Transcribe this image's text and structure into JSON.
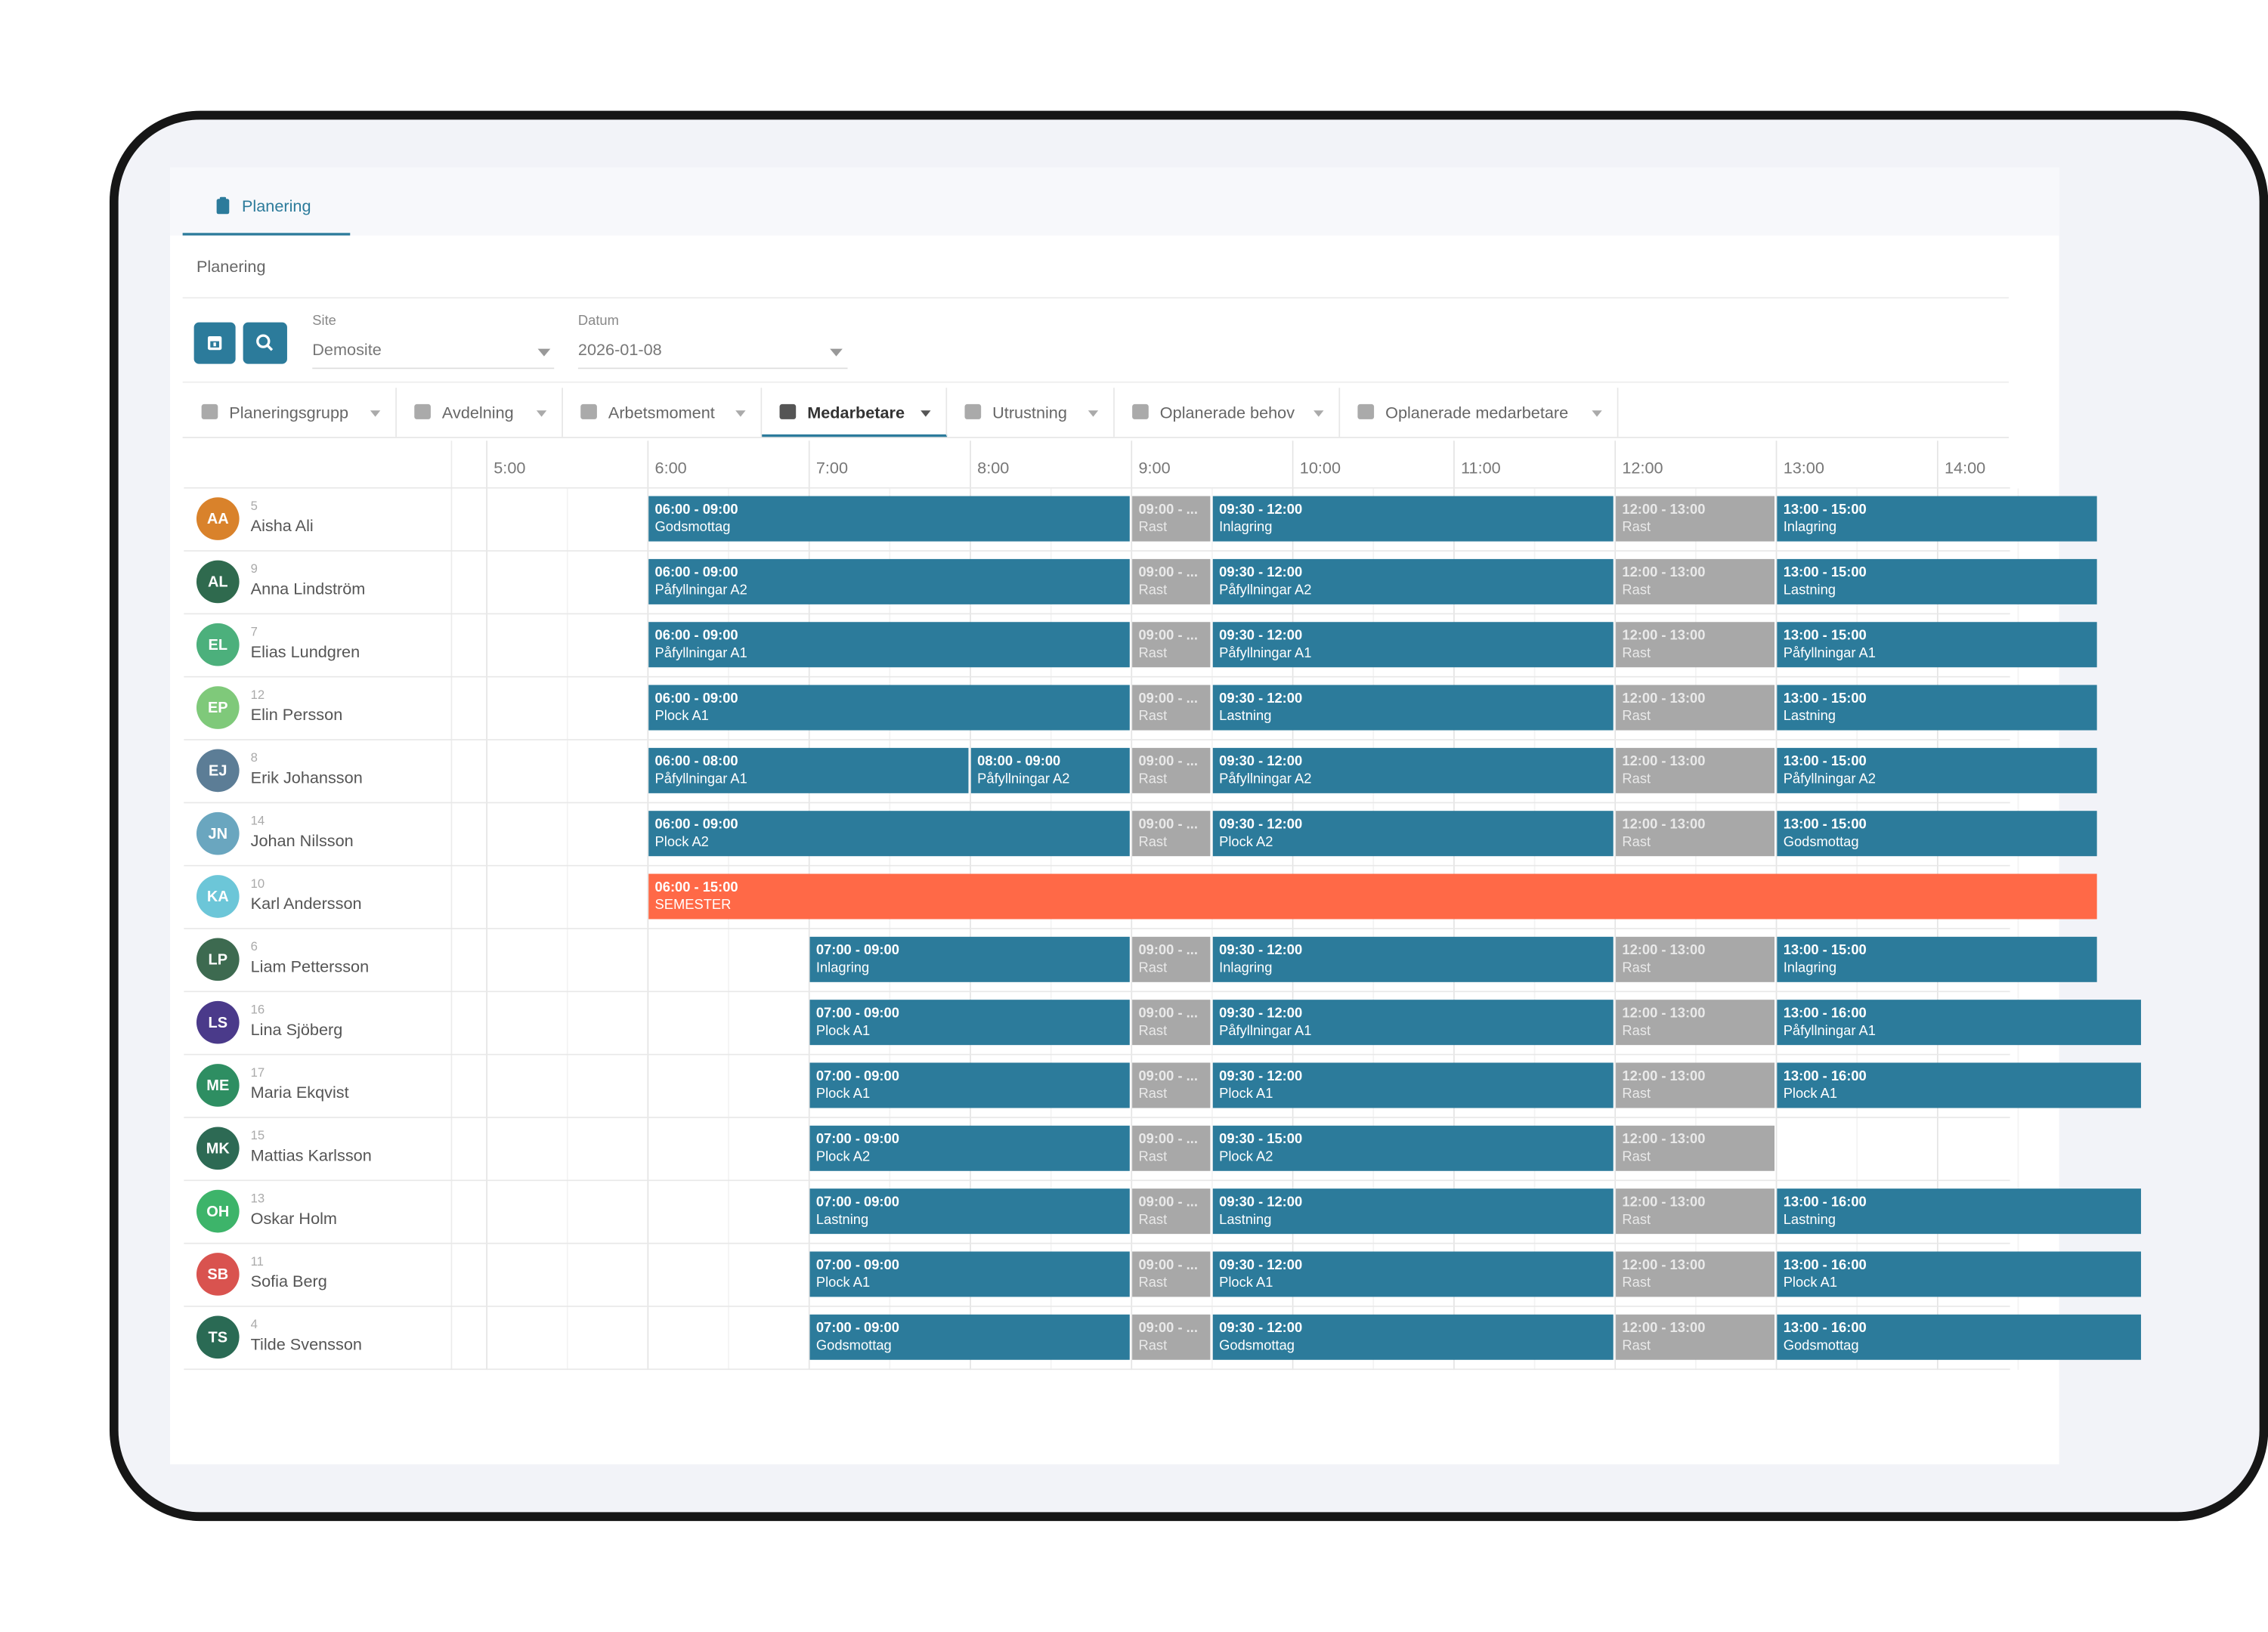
{
  "main_tab": "Planering",
  "breadcrumb": "Planering",
  "filters": {
    "site": {
      "label": "Site",
      "value": "Demosite"
    },
    "date": {
      "label": "Datum",
      "value": "2026-01-08"
    }
  },
  "view_tabs": [
    {
      "label": "Planeringsgrupp",
      "active": false
    },
    {
      "label": "Avdelning",
      "active": false
    },
    {
      "label": "Arbetsmoment",
      "active": false
    },
    {
      "label": "Medarbetare",
      "active": true
    },
    {
      "label": "Utrustning",
      "active": false
    },
    {
      "label": "Oplanerade behov",
      "active": false
    },
    {
      "label": "Oplanerade medarbetare",
      "active": false
    }
  ],
  "hours": [
    "5:00",
    "6:00",
    "7:00",
    "8:00",
    "9:00",
    "10:00",
    "11:00",
    "12:00",
    "13:00",
    "14:00"
  ],
  "shift_color": "#2c7b9b",
  "task_colors": {
    "Rast": "#a8a8a8",
    "SEMESTER": "#ff6947"
  },
  "rows": [
    {
      "initials": "AA",
      "color": "#d9822b",
      "number": 5,
      "name": "Aisha Ali",
      "shifts": [
        {
          "time": "06:00 - 09:00",
          "task": "Godsmottag"
        },
        {
          "time": "09:00 - ...",
          "task": "Rast"
        },
        {
          "time": "09:30 - 12:00",
          "task": "Inlagring"
        },
        {
          "time": "12:00 - 13:00",
          "task": "Rast"
        },
        {
          "time": "13:00 - 15:00",
          "task": "Inlagring"
        }
      ]
    },
    {
      "initials": "AL",
      "color": "#2f6a4e",
      "number": 9,
      "name": "Anna Lindström",
      "shifts": [
        {
          "time": "06:00 - 09:00",
          "task": "Påfyllningar A2"
        },
        {
          "time": "09:00 - ...",
          "task": "Rast"
        },
        {
          "time": "09:30 - 12:00",
          "task": "Påfyllningar A2"
        },
        {
          "time": "12:00 - 13:00",
          "task": "Rast"
        },
        {
          "time": "13:00 - 15:00",
          "task": "Lastning"
        }
      ]
    },
    {
      "initials": "EL",
      "color": "#4cb07c",
      "number": 7,
      "name": "Elias Lundgren",
      "shifts": [
        {
          "time": "06:00 - 09:00",
          "task": "Påfyllningar A1"
        },
        {
          "time": "09:00 - ...",
          "task": "Rast"
        },
        {
          "time": "09:30 - 12:00",
          "task": "Påfyllningar A1"
        },
        {
          "time": "12:00 - 13:00",
          "task": "Rast"
        },
        {
          "time": "13:00 - 15:00",
          "task": "Påfyllningar A1"
        }
      ]
    },
    {
      "initials": "EP",
      "color": "#7fc97a",
      "number": 12,
      "name": "Elin Persson",
      "shifts": [
        {
          "time": "06:00 - 09:00",
          "task": "Plock A1"
        },
        {
          "time": "09:00 - ...",
          "task": "Rast"
        },
        {
          "time": "09:30 - 12:00",
          "task": "Lastning"
        },
        {
          "time": "12:00 - 13:00",
          "task": "Rast"
        },
        {
          "time": "13:00 - 15:00",
          "task": "Lastning"
        }
      ]
    },
    {
      "initials": "EJ",
      "color": "#5c7d96",
      "number": 8,
      "name": "Erik Johansson",
      "shifts": [
        {
          "time": "06:00 - 08:00",
          "task": "Påfyllningar A1"
        },
        {
          "time": "08:00 - 09:00",
          "task": "Påfyllningar A2"
        },
        {
          "time": "09:00 - ...",
          "task": "Rast"
        },
        {
          "time": "09:30 - 12:00",
          "task": "Påfyllningar A2"
        },
        {
          "time": "12:00 - 13:00",
          "task": "Rast"
        },
        {
          "time": "13:00 - 15:00",
          "task": "Påfyllningar A2"
        }
      ]
    },
    {
      "initials": "JN",
      "color": "#6aa6bf",
      "number": 14,
      "name": "Johan Nilsson",
      "shifts": [
        {
          "time": "06:00 - 09:00",
          "task": "Plock A2"
        },
        {
          "time": "09:00 - ...",
          "task": "Rast"
        },
        {
          "time": "09:30 - 12:00",
          "task": "Plock A2"
        },
        {
          "time": "12:00 - 13:00",
          "task": "Rast"
        },
        {
          "time": "13:00 - 15:00",
          "task": "Godsmottag"
        }
      ]
    },
    {
      "initials": "KA",
      "color": "#6cc6d8",
      "number": 10,
      "name": "Karl Andersson",
      "shifts": [
        {
          "time": "06:00 - 15:00",
          "task": "SEMESTER"
        }
      ]
    },
    {
      "initials": "LP",
      "color": "#3d6a50",
      "number": 6,
      "name": "Liam Pettersson",
      "shifts": [
        {
          "time": "07:00 - 09:00",
          "task": "Inlagring"
        },
        {
          "time": "09:00 - ...",
          "task": "Rast"
        },
        {
          "time": "09:30 - 12:00",
          "task": "Inlagring"
        },
        {
          "time": "12:00 - 13:00",
          "task": "Rast"
        },
        {
          "time": "13:00 - 15:00",
          "task": "Inlagring"
        }
      ]
    },
    {
      "initials": "LS",
      "color": "#4a3a8a",
      "number": 16,
      "name": "Lina Sjöberg",
      "shifts": [
        {
          "time": "07:00 - 09:00",
          "task": "Plock A1"
        },
        {
          "time": "09:00 - ...",
          "task": "Rast"
        },
        {
          "time": "09:30 - 12:00",
          "task": "Påfyllningar A1"
        },
        {
          "time": "12:00 - 13:00",
          "task": "Rast"
        },
        {
          "time": "13:00 - 16:00",
          "task": "Påfyllningar A1"
        }
      ]
    },
    {
      "initials": "ME",
      "color": "#2e8e62",
      "number": 17,
      "name": "Maria Ekqvist",
      "shifts": [
        {
          "time": "07:00 - 09:00",
          "task": "Plock A1"
        },
        {
          "time": "09:00 - ...",
          "task": "Rast"
        },
        {
          "time": "09:30 - 12:00",
          "task": "Plock A1"
        },
        {
          "time": "12:00 - 13:00",
          "task": "Rast"
        },
        {
          "time": "13:00 - 16:00",
          "task": "Plock A1"
        }
      ]
    },
    {
      "initials": "MK",
      "color": "#2d6a54",
      "number": 15,
      "name": "Mattias Karlsson",
      "shifts": [
        {
          "time": "07:00 - 09:00",
          "task": "Plock A2"
        },
        {
          "time": "09:00 - ...",
          "task": "Rast"
        },
        {
          "time": "09:30 - 15:00",
          "task": "Plock A2"
        },
        {
          "time": "12:00 - 13:00",
          "task": "Rast"
        }
      ]
    },
    {
      "initials": "OH",
      "color": "#3db46a",
      "number": 13,
      "name": "Oskar Holm",
      "shifts": [
        {
          "time": "07:00 - 09:00",
          "task": "Lastning"
        },
        {
          "time": "09:00 - ...",
          "task": "Rast"
        },
        {
          "time": "09:30 - 12:00",
          "task": "Lastning"
        },
        {
          "time": "12:00 - 13:00",
          "task": "Rast"
        },
        {
          "time": "13:00 - 16:00",
          "task": "Lastning"
        }
      ]
    },
    {
      "initials": "SB",
      "color": "#d9534f",
      "number": 11,
      "name": "Sofia Berg",
      "shifts": [
        {
          "time": "07:00 - 09:00",
          "task": "Plock A1"
        },
        {
          "time": "09:00 - ...",
          "task": "Rast"
        },
        {
          "time": "09:30 - 12:00",
          "task": "Plock A1"
        },
        {
          "time": "12:00 - 13:00",
          "task": "Rast"
        },
        {
          "time": "13:00 - 16:00",
          "task": "Plock A1"
        }
      ]
    },
    {
      "initials": "TS",
      "color": "#2a6a54",
      "number": 4,
      "name": "Tilde Svensson",
      "shifts": [
        {
          "time": "07:00 - 09:00",
          "task": "Godsmottag"
        },
        {
          "time": "09:00 - ...",
          "task": "Rast"
        },
        {
          "time": "09:30 - 12:00",
          "task": "Godsmottag"
        },
        {
          "time": "12:00 - 13:00",
          "task": "Rast"
        },
        {
          "time": "13:00 - 16:00",
          "task": "Godsmottag"
        }
      ]
    }
  ]
}
